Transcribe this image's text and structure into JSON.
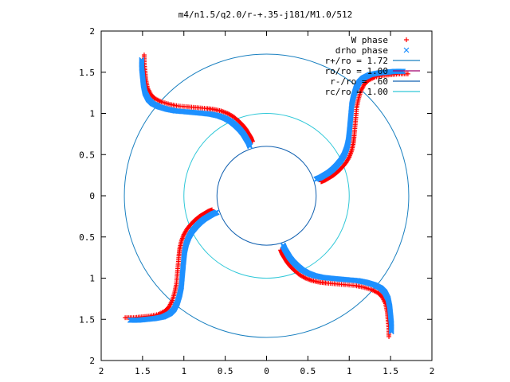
{
  "chart_data": {
    "type": "scatter",
    "title": "m4/n1.5/q2.0/r-+.35-j181/M1.0/512",
    "xlim": [
      -2,
      2
    ],
    "ylim": [
      -2,
      2
    ],
    "x_ticks": [
      -2,
      -1.5,
      -1,
      -0.5,
      0,
      0.5,
      1,
      1.5,
      2
    ],
    "y_ticks": [
      -2,
      -1.5,
      -1,
      -0.5,
      0,
      0.5,
      1,
      1.5,
      2
    ],
    "x_tick_labels": [
      "2",
      "1.5",
      "1",
      "0.5",
      "0",
      "0.5",
      "1",
      "1.5",
      "2"
    ],
    "y_tick_labels": [
      "2",
      "1.5",
      "1",
      "0.5",
      "0",
      "0.5",
      "1",
      "1.5",
      "2"
    ],
    "grid": false,
    "legend_position": "top-right",
    "arms": 4,
    "series": [
      {
        "name": "W phase",
        "marker": "+",
        "color": "#ff0000"
      },
      {
        "name": "drho phase",
        "marker": "x",
        "color": "#1e90ff"
      }
    ],
    "circles": [
      {
        "name": "r+/ro = 1.72",
        "r": 1.72,
        "color": "#1a80c0"
      },
      {
        "name": "ro/ro = 1.00",
        "r": 1.0,
        "color": "#a0006e"
      },
      {
        "name": "r-/ro = .60",
        "r": 0.6,
        "color": "#1060b0"
      },
      {
        "name": "rc/ro = 1.00",
        "r": 1.0,
        "color": "#30c8d8"
      }
    ],
    "arm_path": [
      [
        0.6,
        0.2
      ],
      [
        0.65,
        0.22
      ],
      [
        0.7,
        0.25
      ],
      [
        0.75,
        0.28
      ],
      [
        0.8,
        0.32
      ],
      [
        0.85,
        0.37
      ],
      [
        0.9,
        0.43
      ],
      [
        0.94,
        0.5
      ],
      [
        0.97,
        0.58
      ],
      [
        0.99,
        0.67
      ],
      [
        1.0,
        0.76
      ],
      [
        1.01,
        0.87
      ],
      [
        1.02,
        0.98
      ],
      [
        1.03,
        1.1
      ],
      [
        1.05,
        1.2
      ],
      [
        1.08,
        1.3
      ],
      [
        1.12,
        1.38
      ],
      [
        1.17,
        1.43
      ],
      [
        1.25,
        1.47
      ],
      [
        1.35,
        1.49
      ],
      [
        1.45,
        1.5
      ],
      [
        1.55,
        1.51
      ],
      [
        1.65,
        1.51
      ]
    ],
    "red_offset": 0.06
  }
}
